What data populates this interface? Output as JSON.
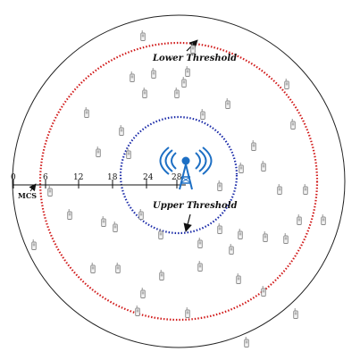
{
  "labels": {
    "lower_threshold": "Lower Threshold",
    "upper_threshold": "Upper Threshold",
    "mcs": "MCS"
  },
  "axis_ticks": [
    "0",
    "6",
    "12",
    "18",
    "24",
    "28"
  ],
  "colors": {
    "outer_circle": "#222222",
    "lower_threshold_ring": "#d11a1a",
    "upper_threshold_ring": "#1a2aa8",
    "tower": "#1d6fc4",
    "device": "#8a8a8a"
  },
  "icons": {
    "base_station": "antenna-tower-icon",
    "user_device": "mobile-phone-icon"
  }
}
